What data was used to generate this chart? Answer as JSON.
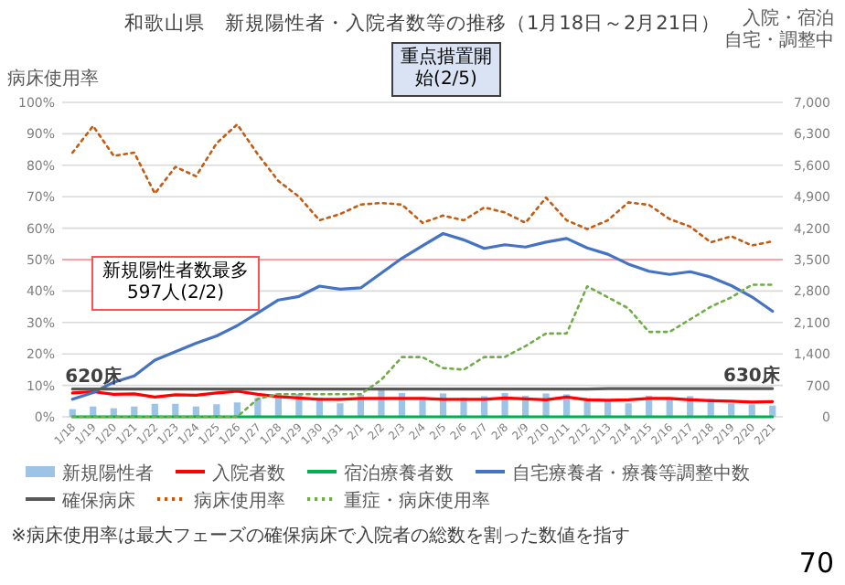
{
  "chart_data": {
    "type": "bar",
    "title": "和歌山県　新規陽性者・入院者数等の推移（1月18日～2月21日）",
    "ylabel": "病床使用率",
    "y2label": "入院・宿泊",
    "categories": [
      "1/18",
      "1/19",
      "1/20",
      "1/21",
      "1/22",
      "1/23",
      "1/24",
      "1/25",
      "1/26",
      "1/27",
      "1/28",
      "1/29",
      "1/30",
      "1/31",
      "2/1",
      "2/2",
      "2/3",
      "2/4",
      "2/5",
      "2/6",
      "2/7",
      "2/8",
      "2/9",
      "2/10",
      "2/11",
      "2/12",
      "2/13",
      "2/14",
      "2/15",
      "2/16",
      "2/17",
      "2/18",
      "2/19",
      "2/20",
      "2/21"
    ],
    "ylim": [
      0,
      100
    ],
    "yticks": [
      {
        "value": 0,
        "label": "0%"
      },
      {
        "value": 10,
        "label": "10%"
      },
      {
        "value": 20,
        "label": "20%"
      },
      {
        "value": 30,
        "label": "30%"
      },
      {
        "value": 40,
        "label": "40%"
      },
      {
        "value": 50,
        "label": "50%"
      },
      {
        "value": 60,
        "label": "60%"
      },
      {
        "value": 70,
        "label": "70%"
      },
      {
        "value": 80,
        "label": "80%"
      },
      {
        "value": 90,
        "label": "90%"
      },
      {
        "value": 100,
        "label": "100%"
      }
    ],
    "y2lim": [
      0,
      7000
    ],
    "y2ticks": [
      0,
      700,
      {
        "value": 1400,
        "label": "1,400"
      },
      {
        "value": 2100,
        "label": "2,100"
      },
      {
        "value": 2800,
        "label": "2,800"
      },
      {
        "value": 3500,
        "label": "3,500"
      },
      {
        "value": 4200,
        "label": "4,200"
      },
      {
        "value": 4900,
        "label": "4,900"
      },
      {
        "value": 5600,
        "label": "5,600"
      },
      {
        "value": 6300,
        "label": "6,300"
      },
      {
        "value": 7000,
        "label": "7,000"
      }
    ],
    "grid": "y",
    "legend": "bottom",
    "marker": "none",
    "ref_lines": [
      {
        "axis": "y",
        "value": 50,
        "color": "#f4a6a6"
      }
    ],
    "series": [
      {
        "name": "新規陽性者",
        "axis": "y2",
        "color": "#9dc3e6",
        "values": [
          170,
          230,
          190,
          230,
          290,
          290,
          230,
          280,
          320,
          420,
          530,
          510,
          430,
          300,
          490,
          597,
          530,
          440,
          520,
          430,
          460,
          530,
          470,
          520,
          500,
          420,
          360,
          300,
          470,
          420,
          460,
          400,
          300,
          280,
          250
        ]
      },
      {
        "name": "入院者数",
        "type": "line",
        "axis": "y2",
        "color": "#ff0000",
        "line_style": "solid",
        "values": [
          530,
          560,
          500,
          510,
          440,
          490,
          480,
          530,
          570,
          500,
          450,
          420,
          390,
          390,
          410,
          410,
          410,
          410,
          390,
          390,
          390,
          420,
          400,
          380,
          440,
          380,
          370,
          380,
          410,
          410,
          380,
          360,
          350,
          330,
          340
        ]
      },
      {
        "name": "宿泊療養者数",
        "type": "line",
        "axis": "y2",
        "color": "#00b050",
        "line_style": "solid",
        "values": [
          0,
          0,
          0,
          0,
          0,
          0,
          0,
          0,
          0,
          0,
          0,
          0,
          0,
          0,
          0,
          0,
          0,
          0,
          0,
          0,
          0,
          0,
          0,
          0,
          0,
          0,
          0,
          0,
          0,
          0,
          0,
          0,
          0,
          0,
          0
        ]
      },
      {
        "name": "自宅療養者・療養等調整中数",
        "type": "line",
        "axis": "y2",
        "color": "#4472c4",
        "line_style": "solid",
        "values": [
          390,
          540,
          770,
          910,
          1260,
          1450,
          1640,
          1800,
          2030,
          2310,
          2600,
          2680,
          2910,
          2840,
          2870,
          3200,
          3530,
          3810,
          4080,
          3940,
          3750,
          3830,
          3780,
          3890,
          3970,
          3760,
          3620,
          3400,
          3240,
          3170,
          3230,
          3110,
          2920,
          2670,
          2350
        ]
      },
      {
        "name": "確保病床",
        "type": "line",
        "axis": "y2",
        "color": "#595959",
        "line_style": "solid",
        "values": [
          620,
          620,
          620,
          620,
          620,
          620,
          620,
          620,
          620,
          620,
          620,
          620,
          620,
          620,
          620,
          620,
          620,
          620,
          620,
          620,
          620,
          620,
          620,
          620,
          620,
          620,
          630,
          630,
          630,
          630,
          630,
          630,
          630,
          630,
          630
        ],
        "value_labels": [
          "620床",
          null,
          null,
          null,
          null,
          null,
          null,
          null,
          null,
          null,
          null,
          null,
          null,
          null,
          null,
          null,
          null,
          null,
          null,
          null,
          null,
          null,
          null,
          null,
          null,
          null,
          null,
          null,
          null,
          null,
          null,
          null,
          null,
          null,
          "630床"
        ]
      },
      {
        "name": "病床使用率",
        "type": "line",
        "axis": "y",
        "color": "#c55a11",
        "line_style": "dotted",
        "values": [
          84,
          92.5,
          83,
          84,
          71,
          79.5,
          76.5,
          87,
          93,
          83.5,
          75,
          70,
          62.5,
          64.5,
          67.5,
          68,
          67.5,
          61.7,
          64,
          62.5,
          66.6,
          65,
          61.7,
          69.7,
          62.5,
          59.7,
          62.5,
          68.2,
          67.4,
          62.9,
          60.5,
          55.5,
          57.4,
          54.5,
          55.8
        ]
      },
      {
        "name": "重症・病床使用率",
        "type": "line",
        "axis": "y",
        "color": "#70ad47",
        "line_style": "dotted",
        "values": [
          0,
          0,
          0,
          0,
          0,
          0,
          0,
          0,
          0,
          5.7,
          7.2,
          7.2,
          7.2,
          7.2,
          7.2,
          11.8,
          19,
          19,
          15.5,
          15,
          19,
          19,
          22.5,
          26.5,
          26.5,
          41.5,
          38,
          34.5,
          27,
          27,
          31,
          35,
          38,
          42,
          42
        ]
      }
    ],
    "annotations": [
      "重点措置開始(2/5)",
      "新規陽性者数最多597人(2/2)",
      "自宅・調整中",
      "※病床使用率は最大フェーズの確保病床で入院者の総数を割った数値を指す",
      "70"
    ]
  }
}
